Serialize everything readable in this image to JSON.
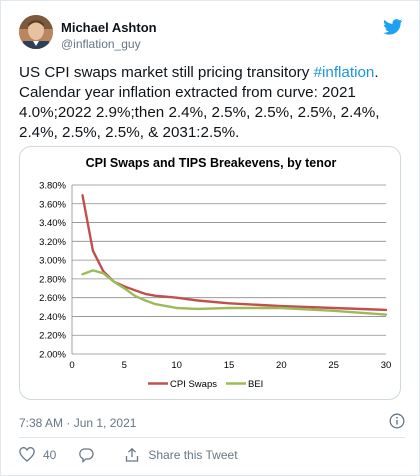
{
  "author": {
    "name": "Michael Ashton",
    "handle": "@inflation_guy"
  },
  "tweet": {
    "text_before": "US CPI swaps market still pricing transitory ",
    "hashtag": "#inflation",
    "text_after": ". Calendar year inflation extracted from curve: 2021 4.0%;2022 2.9%;then 2.4%, 2.5%, 2.5%, 2.5%, 2.4%, 2.4%, 2.5%, 2.5%,  & 2031:2.5%."
  },
  "footer": {
    "timestamp": "7:38 AM · Jun 1, 2021",
    "like_count": "40",
    "share_label": "Share this Tweet"
  },
  "colors": {
    "hashtag": "#1b95e0",
    "cpi_swaps": "#c0504d",
    "bei": "#9bbb59",
    "twitter_blue": "#1da1f2"
  },
  "chart_data": {
    "type": "line",
    "title": "CPI Swaps and TIPS Breakevens, by tenor",
    "xlabel": "",
    "ylabel": "",
    "xlim": [
      0,
      30
    ],
    "ylim": [
      2.0,
      3.8
    ],
    "x_ticks": [
      "0",
      "5",
      "10",
      "15",
      "20",
      "25",
      "30"
    ],
    "y_ticks": [
      "2.00%",
      "2.20%",
      "2.40%",
      "2.60%",
      "2.80%",
      "3.00%",
      "3.20%",
      "3.40%",
      "3.60%",
      "3.80%"
    ],
    "grid": true,
    "legend_position": "bottom",
    "series": [
      {
        "name": "CPI Swaps",
        "x": [
          1,
          2,
          3,
          4,
          5,
          6,
          7,
          8,
          9,
          10,
          12,
          15,
          20,
          25,
          30
        ],
        "y": [
          3.69,
          3.1,
          2.88,
          2.77,
          2.72,
          2.68,
          2.64,
          2.62,
          2.61,
          2.6,
          2.57,
          2.54,
          2.51,
          2.49,
          2.47
        ]
      },
      {
        "name": "BEI",
        "x": [
          1,
          2,
          3,
          4,
          5,
          6,
          7,
          8,
          9,
          10,
          12,
          15,
          20,
          25,
          30
        ],
        "y": [
          2.85,
          2.89,
          2.86,
          2.77,
          2.7,
          2.62,
          2.57,
          2.53,
          2.51,
          2.49,
          2.48,
          2.49,
          2.49,
          2.46,
          2.42
        ]
      }
    ]
  }
}
